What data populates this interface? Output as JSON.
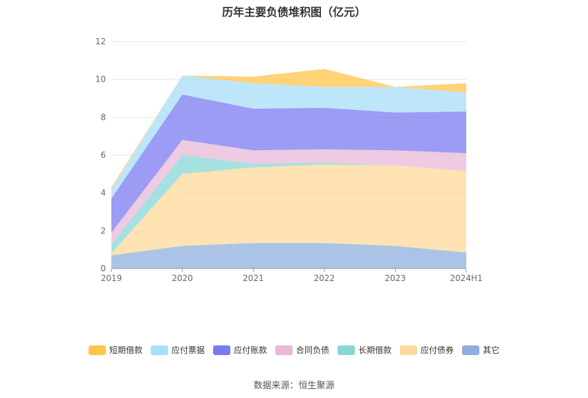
{
  "chart_data": {
    "type": "area",
    "stacked": true,
    "title": "历年主要负债堆积图（亿元）",
    "xlabel": "",
    "ylabel": "",
    "categories": [
      "2019",
      "2020",
      "2021",
      "2022",
      "2023",
      "2024H1"
    ],
    "ylim": [
      0,
      12
    ],
    "yticks": [
      0,
      2,
      4,
      6,
      8,
      10,
      12
    ],
    "grid": true,
    "legend_position": "bottom",
    "series": [
      {
        "name": "其它",
        "color": "#8fb0dc",
        "values": [
          0.7,
          1.2,
          1.35,
          1.35,
          1.2,
          0.85
        ]
      },
      {
        "name": "应付债券",
        "color": "#ffd99a",
        "values": [
          0.1,
          3.8,
          4.0,
          4.15,
          4.25,
          4.3
        ]
      },
      {
        "name": "长期借款",
        "color": "#8ad6d6",
        "values": [
          0.5,
          1.0,
          0.2,
          0.1,
          0.0,
          0.0
        ]
      },
      {
        "name": "合同负债",
        "color": "#e8b9d9",
        "values": [
          0.6,
          0.8,
          0.7,
          0.7,
          0.8,
          0.95
        ]
      },
      {
        "name": "应付账款",
        "color": "#7b7bf0",
        "values": [
          1.8,
          2.4,
          2.2,
          2.2,
          2.0,
          2.2
        ]
      },
      {
        "name": "应付票据",
        "color": "#a8def8",
        "values": [
          0.5,
          1.0,
          1.35,
          1.1,
          1.35,
          1.0
        ]
      },
      {
        "name": "短期借款",
        "color": "#ffc44a",
        "values": [
          0.1,
          0.0,
          0.35,
          0.95,
          0.0,
          0.5
        ]
      }
    ]
  },
  "legend_order": [
    "短期借款",
    "应付票据",
    "应付账款",
    "合同负债",
    "长期借款",
    "应付债券",
    "其它"
  ],
  "source": "数据来源：恒生聚源"
}
